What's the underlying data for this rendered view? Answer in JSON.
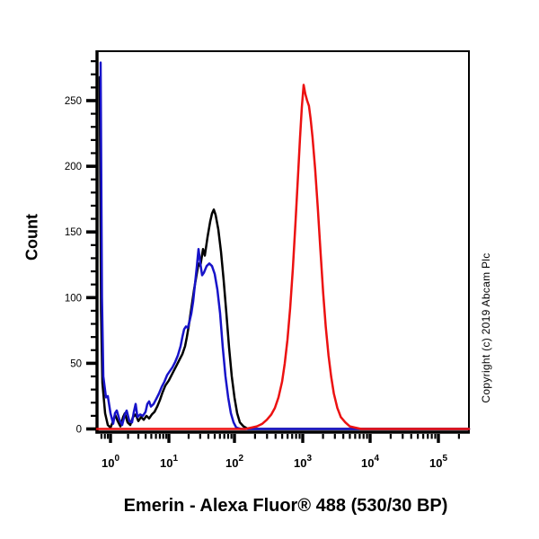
{
  "copyright": "Copyright (c) 2019 Abcam Plc",
  "chart_data": {
    "type": "line",
    "title": "",
    "xlabel": "Emerin - Alexa Fluor® 488 (530/30 BP)",
    "ylabel": "Count",
    "x_axis": {
      "scale": "log10",
      "tick_base": "10",
      "tick_exponents": [
        0,
        1,
        2,
        3,
        4,
        5
      ],
      "xlim_log": [
        -0.23,
        5.45
      ]
    },
    "y_axis": {
      "min": 0,
      "max": 288,
      "major_ticks": [
        0,
        50,
        100,
        150,
        200,
        250
      ],
      "minor_step": 10
    },
    "grid": false,
    "legend": "none",
    "series": [
      {
        "name": "black",
        "color": "#000000",
        "points": [
          [
            -0.185,
            268
          ],
          [
            -0.162,
            90
          ],
          [
            -0.138,
            35
          ],
          [
            -0.092,
            12
          ],
          [
            -0.046,
            3
          ],
          [
            0,
            1
          ],
          [
            0.046,
            6
          ],
          [
            0.077,
            11
          ],
          [
            0.123,
            6
          ],
          [
            0.169,
            2
          ],
          [
            0.215,
            9
          ],
          [
            0.246,
            12
          ],
          [
            0.292,
            5
          ],
          [
            0.338,
            3
          ],
          [
            0.385,
            9
          ],
          [
            0.431,
            11
          ],
          [
            0.477,
            6
          ],
          [
            0.523,
            9
          ],
          [
            0.569,
            7
          ],
          [
            0.615,
            10
          ],
          [
            0.662,
            8
          ],
          [
            0.708,
            11
          ],
          [
            0.754,
            13
          ],
          [
            0.8,
            17
          ],
          [
            0.846,
            22
          ],
          [
            0.892,
            28
          ],
          [
            0.938,
            33
          ],
          [
            1.0,
            37
          ],
          [
            1.041,
            41
          ],
          [
            1.082,
            45
          ],
          [
            1.123,
            49
          ],
          [
            1.164,
            53
          ],
          [
            1.205,
            57
          ],
          [
            1.247,
            63
          ],
          [
            1.274,
            70
          ],
          [
            1.301,
            78
          ],
          [
            1.342,
            92
          ],
          [
            1.384,
            106
          ],
          [
            1.425,
            118
          ],
          [
            1.452,
            126
          ],
          [
            1.479,
            124
          ],
          [
            1.521,
            137
          ],
          [
            1.548,
            132
          ],
          [
            1.589,
            146
          ],
          [
            1.63,
            158
          ],
          [
            1.658,
            164
          ],
          [
            1.685,
            167
          ],
          [
            1.712,
            163
          ],
          [
            1.753,
            152
          ],
          [
            1.795,
            135
          ],
          [
            1.836,
            113
          ],
          [
            1.877,
            88
          ],
          [
            1.918,
            62
          ],
          [
            1.959,
            40
          ],
          [
            2.0,
            24
          ],
          [
            2.039,
            12
          ],
          [
            2.079,
            5
          ],
          [
            2.132,
            2
          ],
          [
            2.197,
            0
          ],
          [
            5.447,
            0
          ]
        ]
      },
      {
        "name": "blue",
        "color": "#1713c9",
        "points": [
          [
            -0.169,
            279
          ],
          [
            -0.146,
            100
          ],
          [
            -0.123,
            40
          ],
          [
            -0.077,
            24
          ],
          [
            -0.046,
            25
          ],
          [
            0,
            12
          ],
          [
            0.046,
            4
          ],
          [
            0.077,
            12
          ],
          [
            0.108,
            14
          ],
          [
            0.154,
            7
          ],
          [
            0.2,
            3
          ],
          [
            0.246,
            11
          ],
          [
            0.277,
            14
          ],
          [
            0.323,
            6
          ],
          [
            0.369,
            5
          ],
          [
            0.4,
            13
          ],
          [
            0.431,
            19
          ],
          [
            0.462,
            9
          ],
          [
            0.508,
            11
          ],
          [
            0.554,
            10
          ],
          [
            0.6,
            13
          ],
          [
            0.631,
            19
          ],
          [
            0.662,
            21
          ],
          [
            0.692,
            17
          ],
          [
            0.738,
            19
          ],
          [
            0.785,
            23
          ],
          [
            0.831,
            27
          ],
          [
            0.877,
            32
          ],
          [
            0.923,
            36
          ],
          [
            0.969,
            41
          ],
          [
            1.014,
            44
          ],
          [
            1.055,
            47
          ],
          [
            1.096,
            51
          ],
          [
            1.137,
            56
          ],
          [
            1.178,
            63
          ],
          [
            1.205,
            70
          ],
          [
            1.233,
            76
          ],
          [
            1.26,
            78
          ],
          [
            1.288,
            77
          ],
          [
            1.315,
            82
          ],
          [
            1.342,
            88
          ],
          [
            1.37,
            97
          ],
          [
            1.397,
            110
          ],
          [
            1.425,
            123
          ],
          [
            1.438,
            130
          ],
          [
            1.452,
            137
          ],
          [
            1.479,
            126
          ],
          [
            1.507,
            117
          ],
          [
            1.534,
            119
          ],
          [
            1.575,
            124
          ],
          [
            1.616,
            126
          ],
          [
            1.658,
            124
          ],
          [
            1.699,
            118
          ],
          [
            1.74,
            106
          ],
          [
            1.781,
            88
          ],
          [
            1.822,
            62
          ],
          [
            1.863,
            40
          ],
          [
            1.904,
            24
          ],
          [
            1.945,
            12
          ],
          [
            1.986,
            5
          ],
          [
            2.026,
            1
          ],
          [
            2.092,
            0
          ],
          [
            5.447,
            0
          ]
        ]
      },
      {
        "name": "red",
        "color": "#ec1111",
        "points": [
          [
            -0.23,
            0
          ],
          [
            2.158,
            0
          ],
          [
            2.25,
            1
          ],
          [
            2.329,
            2
          ],
          [
            2.408,
            4
          ],
          [
            2.474,
            7
          ],
          [
            2.539,
            11
          ],
          [
            2.592,
            16
          ],
          [
            2.645,
            24
          ],
          [
            2.697,
            36
          ],
          [
            2.737,
            50
          ],
          [
            2.776,
            68
          ],
          [
            2.816,
            92
          ],
          [
            2.855,
            122
          ],
          [
            2.895,
            158
          ],
          [
            2.934,
            196
          ],
          [
            2.961,
            222
          ],
          [
            2.987,
            245
          ],
          [
            3.013,
            262
          ],
          [
            3.039,
            255
          ],
          [
            3.066,
            250
          ],
          [
            3.092,
            246
          ],
          [
            3.118,
            236
          ],
          [
            3.145,
            222
          ],
          [
            3.184,
            198
          ],
          [
            3.224,
            168
          ],
          [
            3.263,
            136
          ],
          [
            3.303,
            104
          ],
          [
            3.342,
            78
          ],
          [
            3.382,
            56
          ],
          [
            3.421,
            40
          ],
          [
            3.461,
            27
          ],
          [
            3.513,
            16
          ],
          [
            3.566,
            9
          ],
          [
            3.632,
            5
          ],
          [
            3.697,
            2
          ],
          [
            3.776,
            1
          ],
          [
            3.868,
            0
          ],
          [
            5.447,
            0
          ]
        ]
      }
    ]
  }
}
